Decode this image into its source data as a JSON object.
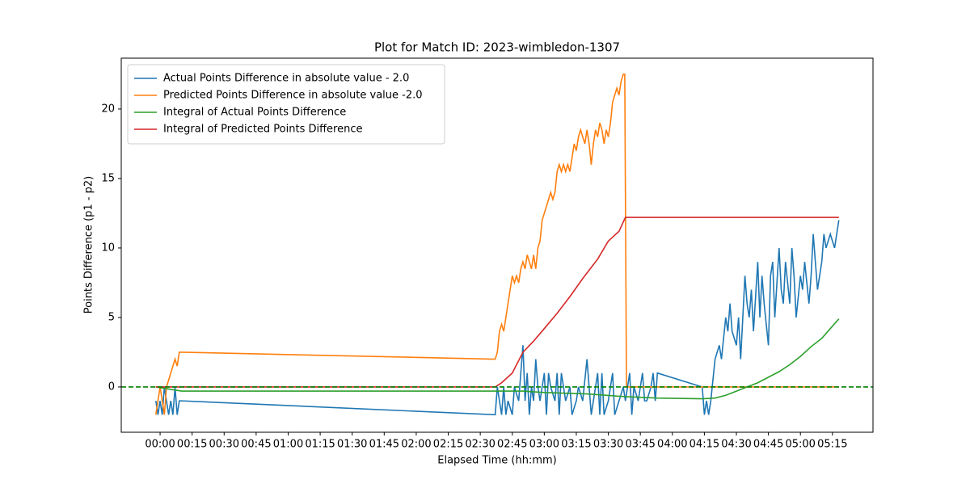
{
  "chart_data": {
    "type": "line",
    "title": "Plot for Match ID: 2023-wimbledon-1307",
    "xlabel": "Elapsed Time (hh:mm)",
    "ylabel": "Points Difference (p1 - p2)",
    "xlim": [
      -18.2,
      334
    ],
    "ylim": [
      -3.26,
      23.66
    ],
    "xticks": [
      {
        "value": 0,
        "label": "00:00"
      },
      {
        "value": 15,
        "label": "00:15"
      },
      {
        "value": 30,
        "label": "00:30"
      },
      {
        "value": 45,
        "label": "00:45"
      },
      {
        "value": 60,
        "label": "01:00"
      },
      {
        "value": 75,
        "label": "01:15"
      },
      {
        "value": 90,
        "label": "01:30"
      },
      {
        "value": 105,
        "label": "01:45"
      },
      {
        "value": 120,
        "label": "02:00"
      },
      {
        "value": 135,
        "label": "02:15"
      },
      {
        "value": 150,
        "label": "02:30"
      },
      {
        "value": 165,
        "label": "02:45"
      },
      {
        "value": 180,
        "label": "03:00"
      },
      {
        "value": 195,
        "label": "03:15"
      },
      {
        "value": 210,
        "label": "03:30"
      },
      {
        "value": 225,
        "label": "03:45"
      },
      {
        "value": 240,
        "label": "04:00"
      },
      {
        "value": 255,
        "label": "04:15"
      },
      {
        "value": 270,
        "label": "04:30"
      },
      {
        "value": 285,
        "label": "04:45"
      },
      {
        "value": 300,
        "label": "05:00"
      },
      {
        "value": 315,
        "label": "05:15"
      }
    ],
    "yticks": [
      0,
      5,
      10,
      15,
      20
    ],
    "legend": "upper left",
    "reference_line": {
      "value": 0,
      "color": "green"
    },
    "series": [
      {
        "name": "Actual Points Difference in absolute value - 2.0",
        "color": "#1f77b4",
        "x": [
          -2,
          -1,
          0,
          1,
          2,
          3,
          4,
          5,
          6,
          7,
          8,
          9,
          10,
          157,
          158,
          159,
          160,
          161,
          162,
          163,
          165,
          166,
          168,
          170,
          171,
          172,
          173,
          174,
          175,
          176,
          177,
          178,
          180,
          181,
          182,
          183,
          185,
          186,
          187,
          188,
          190,
          192,
          193,
          195,
          196,
          198,
          200,
          201,
          202,
          203,
          205,
          206,
          207,
          208,
          210,
          212,
          213,
          215,
          217,
          218,
          220,
          221,
          222,
          224,
          226,
          227,
          228,
          230,
          231,
          232,
          233,
          254,
          255,
          256,
          257,
          258,
          260,
          262,
          263,
          265,
          266,
          267,
          268,
          270,
          271,
          272,
          274,
          275,
          276,
          277,
          278,
          280,
          281,
          282,
          283,
          285,
          286,
          287,
          288,
          290,
          291,
          292,
          293,
          295,
          296,
          297,
          298,
          300,
          301,
          302,
          304,
          305,
          306,
          307,
          308,
          310,
          311,
          312,
          314,
          316,
          317,
          318
        ],
        "values": [
          -1,
          -2,
          -1,
          -2,
          0,
          -1,
          -2,
          -1,
          -2,
          0,
          -2,
          -1,
          -1,
          -2,
          0,
          -1,
          -2,
          0,
          -2,
          -1,
          -2,
          0,
          -1,
          3,
          -1,
          1,
          -2,
          0,
          -1,
          2,
          0,
          -1,
          1,
          -2,
          1,
          0,
          -1,
          1,
          -2,
          1,
          -1,
          0,
          -2,
          -1,
          0,
          -1,
          2,
          0,
          -2,
          -1,
          1,
          -2,
          1,
          -2,
          -1,
          1,
          -2,
          -1,
          0,
          -1,
          1,
          -2,
          0,
          -1,
          1,
          -1,
          -1,
          0,
          1,
          -1,
          1,
          0,
          -2,
          -1,
          -2,
          -1,
          2,
          3,
          2,
          5,
          4,
          6,
          4,
          3,
          5,
          2,
          8,
          6,
          5,
          7,
          4,
          9,
          5,
          8,
          6,
          3,
          8,
          9,
          5,
          10,
          7,
          6,
          9,
          6,
          10,
          8,
          5,
          8,
          7,
          9,
          6,
          8,
          11,
          9,
          7,
          9,
          11,
          10,
          11,
          10,
          11,
          12
        ]
      },
      {
        "name": "Predicted Points Difference in absolute value -2.0",
        "color": "#ff7f0e",
        "x": [
          -2,
          -1,
          0,
          1,
          2,
          3,
          4,
          5,
          6,
          7,
          8,
          9,
          10,
          157,
          158,
          159,
          160,
          161,
          162,
          163,
          164,
          165,
          166,
          167,
          168,
          169,
          170,
          171,
          172,
          173,
          174,
          175,
          176,
          177,
          178,
          179,
          180,
          181,
          182,
          183,
          184,
          185,
          186,
          187,
          188,
          189,
          190,
          191,
          192,
          193,
          194,
          195,
          196,
          197,
          198,
          199,
          200,
          201,
          202,
          203,
          204,
          205,
          206,
          207,
          208,
          209,
          210,
          211,
          212,
          213,
          214,
          215,
          216,
          217,
          217.7,
          218.5,
          318
        ],
        "values": [
          -2,
          -1,
          0,
          -1,
          -2,
          0,
          0.5,
          1,
          1.5,
          2,
          1.5,
          2.5,
          2.5,
          2,
          2.5,
          4,
          4.5,
          4,
          5,
          6,
          7,
          8,
          7.5,
          8,
          7.5,
          8.5,
          9,
          8.5,
          9.5,
          9,
          8.5,
          9.5,
          8.5,
          10,
          10.5,
          12,
          12.5,
          13,
          13.5,
          14,
          13.5,
          14,
          15.5,
          16,
          15.5,
          16,
          15.5,
          16,
          15.5,
          16.5,
          17.5,
          17,
          18,
          18.5,
          18,
          17.5,
          18.5,
          17.5,
          16,
          17.5,
          18.5,
          18,
          19,
          18.5,
          17.5,
          18.5,
          18,
          19,
          20.5,
          21,
          21.5,
          21,
          22,
          22.5,
          22.5,
          0,
          0
        ]
      },
      {
        "name": "Integral of Actual Points Difference",
        "color": "#2ca02c",
        "x": [
          -2,
          10,
          157,
          170,
          180,
          200,
          218,
          233,
          254,
          260,
          265,
          270,
          275,
          280,
          285,
          290,
          295,
          300,
          305,
          310,
          314,
          318
        ],
        "values": [
          0,
          -0.3,
          -0.3,
          -0.3,
          -0.4,
          -0.5,
          -0.7,
          -0.8,
          -0.85,
          -0.8,
          -0.6,
          -0.3,
          0,
          0.3,
          0.7,
          1.1,
          1.6,
          2.2,
          2.9,
          3.5,
          4.2,
          4.9
        ]
      },
      {
        "name": "Integral of Predicted Points Difference",
        "color": "#d62728",
        "x": [
          -2,
          157,
          160,
          165,
          170,
          175,
          180,
          186,
          192,
          198,
          205,
          210,
          215,
          218,
          318
        ],
        "values": [
          0,
          0,
          0.3,
          1,
          2.5,
          3.3,
          4.2,
          5.3,
          6.5,
          7.8,
          9.2,
          10.5,
          11.2,
          12.2,
          12.2
        ]
      }
    ]
  }
}
